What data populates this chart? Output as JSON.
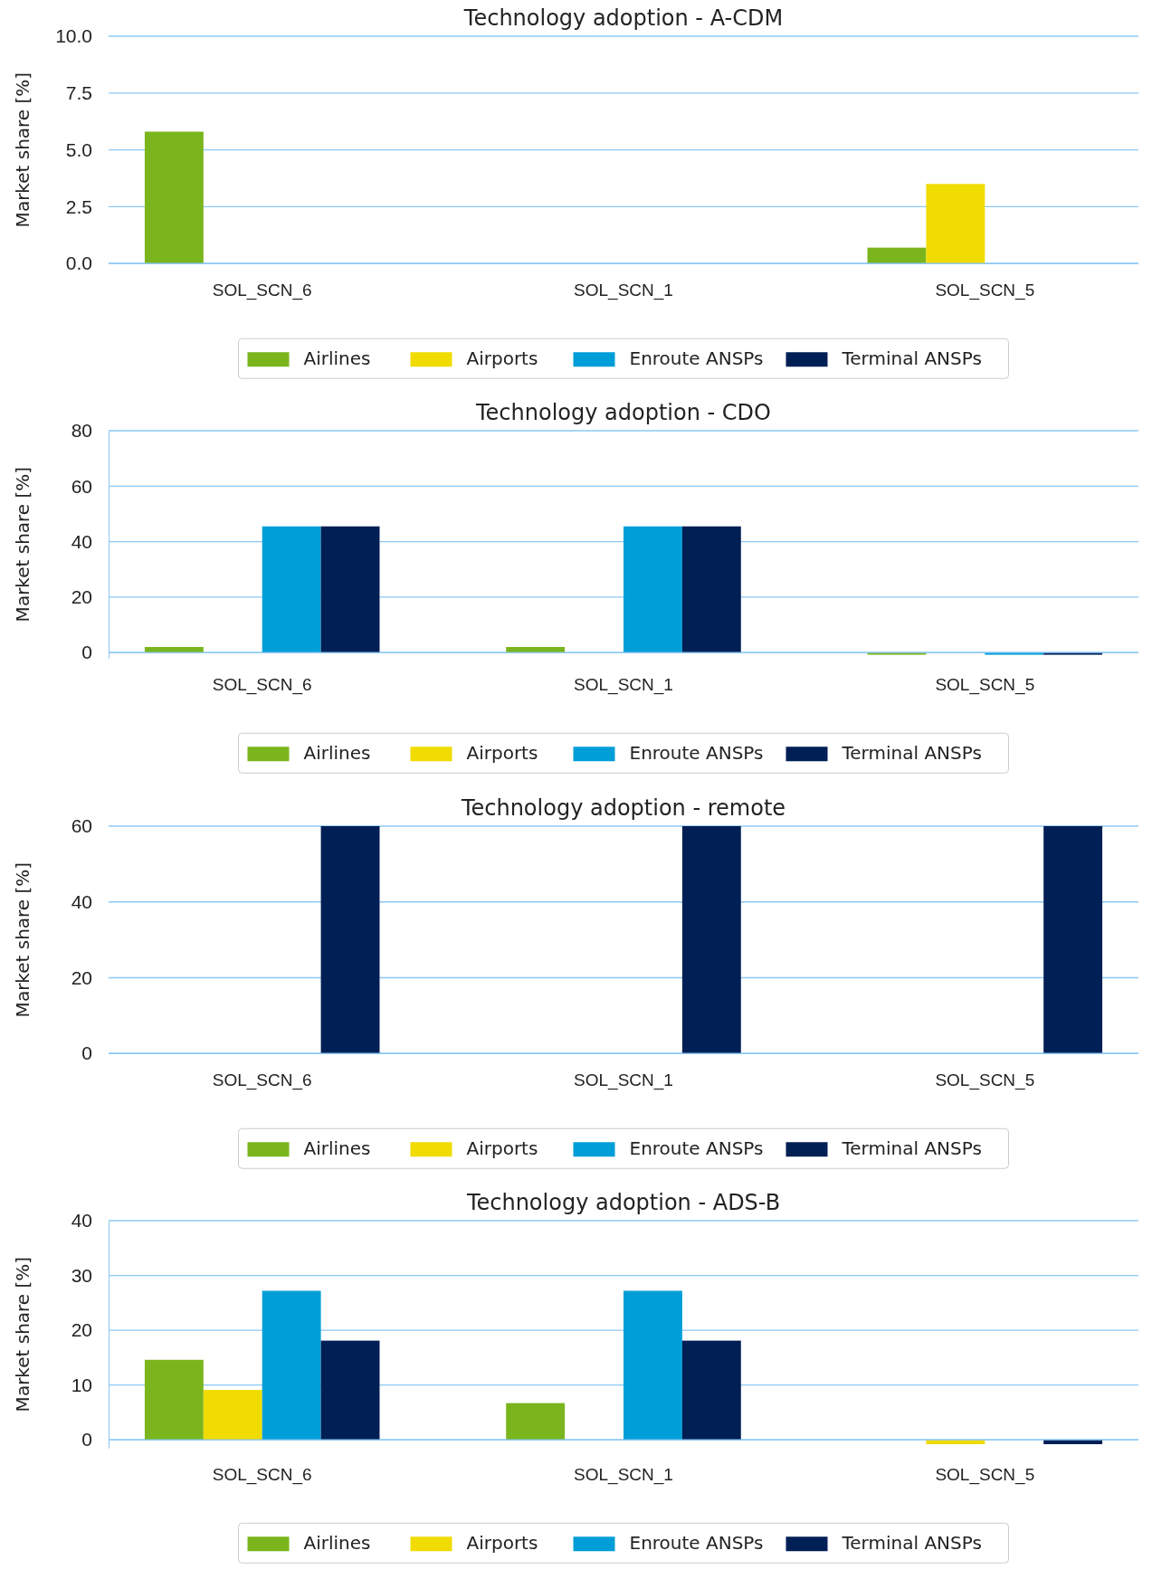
{
  "chart_data": [
    {
      "type": "bar",
      "title": "Technology adoption - A-CDM",
      "ylabel": "Market share [%]",
      "categories": [
        "SOL_SCN_6",
        "SOL_SCN_1",
        "SOL_SCN_5"
      ],
      "series": [
        {
          "name": "Airlines",
          "color": "#7ab51d",
          "values": [
            5.8,
            0,
            0.7
          ]
        },
        {
          "name": "Airports",
          "color": "#f0dc00",
          "values": [
            0,
            0,
            3.5
          ]
        },
        {
          "name": "Enroute ANSPs",
          "color": "#009ed8",
          "values": [
            0,
            0,
            0
          ]
        },
        {
          "name": "Terminal ANSPs",
          "color": "#001f55",
          "values": [
            0,
            0,
            0
          ]
        }
      ],
      "ylim": [
        0,
        10
      ],
      "yticks": [
        {
          "value": 0,
          "label": "0.0"
        },
        {
          "value": 2.5,
          "label": "2.5"
        },
        {
          "value": 5,
          "label": "5.0"
        },
        {
          "value": 7.5,
          "label": "7.5"
        },
        {
          "value": 10,
          "label": "10.0"
        }
      ],
      "grid": "y",
      "legend": "bottom"
    },
    {
      "type": "bar",
      "title": "Technology adoption - CDO",
      "ylabel": "Market share [%]",
      "categories": [
        "SOL_SCN_6",
        "SOL_SCN_1",
        "SOL_SCN_5"
      ],
      "series": [
        {
          "name": "Airlines",
          "color": "#7ab51d",
          "values": [
            2,
            2,
            -0.8
          ]
        },
        {
          "name": "Airports",
          "color": "#f0dc00",
          "values": [
            0,
            0,
            0
          ]
        },
        {
          "name": "Enroute ANSPs",
          "color": "#009ed8",
          "values": [
            45.5,
            45.5,
            -0.8
          ]
        },
        {
          "name": "Terminal ANSPs",
          "color": "#001f55",
          "values": [
            45.5,
            45.5,
            -0.8
          ]
        }
      ],
      "ylim": [
        -2,
        80
      ],
      "yticks": [
        0,
        20,
        40,
        60,
        80
      ],
      "grid": "y",
      "legend": "bottom"
    },
    {
      "type": "bar",
      "title": "Technology adoption - remote",
      "ylabel": "Market share [%]",
      "categories": [
        "SOL_SCN_6",
        "SOL_SCN_1",
        "SOL_SCN_5"
      ],
      "series": [
        {
          "name": "Airlines",
          "color": "#7ab51d",
          "values": [
            0,
            0,
            0
          ]
        },
        {
          "name": "Airports",
          "color": "#f0dc00",
          "values": [
            0,
            0,
            0
          ]
        },
        {
          "name": "Enroute ANSPs",
          "color": "#009ed8",
          "values": [
            0,
            0,
            0
          ]
        },
        {
          "name": "Terminal ANSPs",
          "color": "#001f55",
          "values": [
            60,
            60,
            60
          ]
        }
      ],
      "ylim": [
        0,
        60
      ],
      "yticks": [
        0,
        20,
        40,
        60
      ],
      "grid": "y",
      "legend": "bottom"
    },
    {
      "type": "bar",
      "title": "Technology adoption - ADS-B",
      "ylabel": "Market share [%]",
      "categories": [
        "SOL_SCN_6",
        "SOL_SCN_1",
        "SOL_SCN_5"
      ],
      "series": [
        {
          "name": "Airlines",
          "color": "#7ab51d",
          "values": [
            14.6,
            6.7,
            0
          ]
        },
        {
          "name": "Airports",
          "color": "#f0dc00",
          "values": [
            9.1,
            0,
            -0.8
          ]
        },
        {
          "name": "Enroute ANSPs",
          "color": "#009ed8",
          "values": [
            27.2,
            27.2,
            0
          ]
        },
        {
          "name": "Terminal ANSPs",
          "color": "#001f55",
          "values": [
            18.1,
            18.1,
            -0.8
          ]
        }
      ],
      "ylim": [
        -1.5,
        40
      ],
      "yticks": [
        0,
        10,
        20,
        30,
        40
      ],
      "grid": "y",
      "legend": "bottom"
    }
  ]
}
